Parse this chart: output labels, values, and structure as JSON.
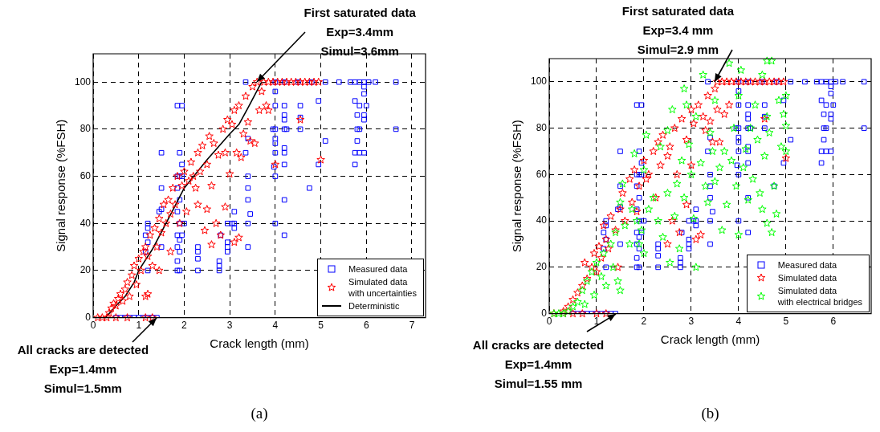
{
  "chart_data": [
    {
      "type": "scatter",
      "xlabel": "Crack length (mm)",
      "ylabel": "Signal response (%FSH)",
      "xlim": [
        0,
        7.3
      ],
      "ylim": [
        0,
        112
      ],
      "xticks": [
        0,
        1,
        2,
        3,
        4,
        5,
        6,
        7
      ],
      "yticks": [
        0,
        20,
        40,
        60,
        80,
        100
      ],
      "grid": true,
      "legend": "bottom right",
      "annotations": [
        {
          "text": "First saturated data\nExp=3.4mm\nSimul=3.6mm",
          "x": 3.6,
          "y": 100
        },
        {
          "text": "All cracks are detected\nExp=1.4mm\nSimul=1.5mm",
          "x": 1.4,
          "y": 0
        },
        "(a)"
      ],
      "series": [
        {
          "name": "Measured data",
          "color": "#0000ff",
          "marker": "square",
          "x": [
            0.5,
            0.6,
            0.7,
            0.8,
            0.9,
            1.0,
            1.1,
            1.2,
            1.3,
            1.4,
            1.5,
            1.85,
            1.95,
            1.9,
            1.95,
            1.5,
            1.45,
            1.5,
            1.2,
            1.2,
            1.15,
            1.2,
            1.15,
            1.5,
            1.2,
            1.85,
            1.9,
            1.95,
            1.85,
            1.9,
            1.85,
            1.9,
            1.85,
            1.9,
            1.85,
            1.9,
            1.85,
            1.9,
            1.85,
            2.0,
            1.95,
            2.3,
            2.3,
            2.3,
            2.3,
            2.77,
            2.77,
            2.77,
            2.8,
            2.95,
            2.95,
            2.95,
            2.95,
            3.1,
            3.1,
            3.1,
            3.05,
            3.35,
            3.4,
            3.4,
            3.4,
            3.4,
            3.45,
            3.4,
            3.4,
            4.0,
            4.0,
            3.95,
            4.0,
            4.0,
            4.0,
            4.0,
            3.97,
            4.0,
            4.0,
            4.2,
            4.2,
            4.2,
            4.2,
            4.25,
            4.2,
            4.2,
            4.2,
            4.2,
            4.2,
            4.55,
            4.55,
            4.55,
            4.75,
            4.95,
            4.95,
            5.1,
            5.75,
            5.8,
            5.85,
            6.0,
            5.95,
            5.95,
            5.95,
            5.95,
            5.8,
            5.85,
            5.8,
            5.75,
            5.85,
            5.95,
            5.75,
            6.65,
            3.35,
            4.0,
            4.2,
            4.5,
            4.8,
            5.1,
            5.4,
            5.65,
            5.75,
            5.85,
            5.95,
            6.05,
            6.2,
            6.65
          ],
          "values": [
            0,
            0,
            0,
            0,
            0,
            0,
            0,
            0,
            0,
            0,
            70,
            90,
            90,
            70,
            65,
            55,
            45,
            46,
            40,
            38,
            35,
            32,
            28,
            30,
            20,
            60,
            60,
            60,
            55,
            50,
            45,
            40,
            35,
            33,
            30,
            28,
            24,
            20,
            20,
            40,
            35,
            30,
            28,
            25,
            20,
            24,
            22,
            20,
            35,
            40,
            32,
            30,
            28,
            45,
            40,
            38,
            40,
            70,
            76,
            60,
            55,
            50,
            44,
            40,
            30,
            96,
            90,
            80,
            80,
            76,
            74,
            70,
            64,
            60,
            40,
            90,
            86,
            84,
            80,
            80,
            72,
            70,
            65,
            50,
            35,
            90,
            85,
            80,
            55,
            92,
            65,
            75,
            92,
            86,
            90,
            90,
            95,
            98,
            86,
            84,
            80,
            80,
            75,
            70,
            70,
            70,
            65,
            80,
            100,
            100,
            100,
            100,
            100,
            100,
            100,
            100,
            100,
            100,
            100,
            100,
            100,
            100
          ]
        },
        {
          "name": "Simulated data\nwith uncertainties",
          "color": "#ff0000",
          "marker": "star",
          "x": [
            0.1,
            0.2,
            0.3,
            0.5,
            0.75,
            1.15,
            1.3,
            0.35,
            0.4,
            0.45,
            0.5,
            0.55,
            0.6,
            0.65,
            0.7,
            0.75,
            0.8,
            0.85,
            0.9,
            0.95,
            1.0,
            1.05,
            1.1,
            1.15,
            1.15,
            1.2,
            1.2,
            1.25,
            1.3,
            1.35,
            1.4,
            1.45,
            1.45,
            1.5,
            1.55,
            1.6,
            1.65,
            1.7,
            1.7,
            1.75,
            1.8,
            1.85,
            1.9,
            1.95,
            2.0,
            2.05,
            2.1,
            2.15,
            2.2,
            2.25,
            2.3,
            2.3,
            2.35,
            2.4,
            2.45,
            2.5,
            2.5,
            2.55,
            2.6,
            2.6,
            2.65,
            2.7,
            2.75,
            2.8,
            2.85,
            2.9,
            2.9,
            2.95,
            3.0,
            3.05,
            3.1,
            3.1,
            3.15,
            3.2,
            3.2,
            3.25,
            3.3,
            3.35,
            3.4,
            3.45,
            3.5,
            3.55,
            3.6,
            3.65,
            3.7,
            3.8,
            3.85,
            4.0,
            4.55,
            5.0,
            3.75,
            3.85,
            3.95,
            4.05,
            4.15,
            4.25,
            4.35,
            4.45,
            4.55,
            4.65,
            4.75,
            4.85,
            4.95
          ],
          "values": [
            0,
            0,
            0,
            0,
            0,
            0,
            0,
            2,
            4,
            6,
            5,
            8,
            10,
            7,
            12,
            15,
            9,
            18,
            22,
            14,
            25,
            20,
            28,
            9,
            30,
            10,
            26,
            35,
            22,
            38,
            30,
            20,
            42,
            36,
            48,
            40,
            50,
            28,
            44,
            55,
            48,
            60,
            40,
            56,
            62,
            45,
            58,
            66,
            60,
            55,
            70,
            48,
            62,
            73,
            37,
            65,
            46,
            77,
            31,
            56,
            74,
            40,
            69,
            35,
            80,
            47,
            70,
            84,
            61,
            82,
            32,
            88,
            70,
            34,
            90,
            68,
            78,
            94,
            83,
            75,
            98,
            74,
            100,
            88,
            96,
            90,
            88,
            65,
            84,
            67,
            100,
            100,
            100,
            100,
            100,
            100,
            100,
            100,
            100,
            100,
            100,
            100,
            100
          ]
        },
        {
          "name": "Deterministic",
          "type": "line",
          "color": "#000000",
          "marker": "none",
          "line_style": "solid",
          "x": [
            0,
            0.27,
            0.5,
            0.7,
            0.9,
            1.0,
            1.3,
            1.6,
            2.0,
            2.5,
            3.0,
            3.2,
            3.4,
            3.7
          ],
          "values": [
            0,
            0,
            5,
            9,
            15,
            20,
            29,
            40,
            55,
            67,
            78,
            82,
            89,
            100
          ]
        }
      ]
    },
    {
      "type": "scatter",
      "xlabel": "Crack length (mm)",
      "ylabel": "Signal response (%FSH)",
      "xlim": [
        0,
        6.8
      ],
      "ylim": [
        0,
        110
      ],
      "xticks": [
        0,
        1,
        2,
        3,
        4,
        5,
        6
      ],
      "yticks": [
        0,
        20,
        40,
        60,
        80,
        100
      ],
      "grid": true,
      "legend": "bottom right",
      "annotations": [
        {
          "text": "First saturated data\nExp=3.4 mm\nSimul=2.9 mm",
          "x": 3.5,
          "y": 100
        },
        {
          "text": "All cracks are detected\nExp=1.4mm\nSimul=1.55 mm",
          "x": 1.4,
          "y": 0
        },
        "(b)"
      ],
      "series": [
        {
          "name": "Measured data",
          "color": "#0000ff",
          "marker": "square",
          "x": [
            0.5,
            0.6,
            0.7,
            0.8,
            0.9,
            1.0,
            1.1,
            1.2,
            1.3,
            1.4,
            1.5,
            1.85,
            1.95,
            1.9,
            1.95,
            1.5,
            1.45,
            1.5,
            1.2,
            1.2,
            1.15,
            1.2,
            1.15,
            1.5,
            1.2,
            1.85,
            1.9,
            1.95,
            1.85,
            1.9,
            1.85,
            1.9,
            1.85,
            1.9,
            1.85,
            1.9,
            1.85,
            1.9,
            1.85,
            2.0,
            1.95,
            2.3,
            2.3,
            2.3,
            2.3,
            2.77,
            2.77,
            2.77,
            2.8,
            2.95,
            2.95,
            2.95,
            2.95,
            3.1,
            3.1,
            3.1,
            3.05,
            3.35,
            3.4,
            3.4,
            3.4,
            3.4,
            3.45,
            3.4,
            3.4,
            4.0,
            4.0,
            3.95,
            4.0,
            4.0,
            4.0,
            4.0,
            3.97,
            4.0,
            4.0,
            4.2,
            4.2,
            4.2,
            4.2,
            4.25,
            4.2,
            4.2,
            4.2,
            4.2,
            4.2,
            4.55,
            4.55,
            4.55,
            4.75,
            4.95,
            4.95,
            5.1,
            5.75,
            5.8,
            5.85,
            6.0,
            5.95,
            5.95,
            5.95,
            5.95,
            5.8,
            5.85,
            5.8,
            5.75,
            5.85,
            5.95,
            5.75,
            6.65,
            3.35,
            4.0,
            4.2,
            4.5,
            4.8,
            5.1,
            5.4,
            5.65,
            5.75,
            5.85,
            5.95,
            6.05,
            6.2,
            6.65
          ],
          "values": [
            0,
            0,
            0,
            0,
            0,
            0,
            0,
            0,
            0,
            0,
            70,
            90,
            90,
            70,
            65,
            55,
            45,
            46,
            40,
            38,
            35,
            32,
            28,
            30,
            20,
            60,
            60,
            60,
            55,
            50,
            45,
            40,
            35,
            33,
            30,
            28,
            24,
            20,
            20,
            40,
            35,
            30,
            28,
            25,
            20,
            24,
            22,
            20,
            35,
            40,
            32,
            30,
            28,
            45,
            40,
            38,
            40,
            70,
            76,
            60,
            55,
            50,
            44,
            40,
            30,
            96,
            90,
            80,
            80,
            76,
            74,
            70,
            64,
            60,
            40,
            90,
            86,
            84,
            80,
            80,
            72,
            70,
            65,
            50,
            35,
            90,
            85,
            80,
            55,
            92,
            65,
            75,
            92,
            86,
            90,
            90,
            95,
            98,
            86,
            84,
            80,
            80,
            75,
            70,
            70,
            70,
            65,
            80,
            100,
            100,
            100,
            100,
            100,
            100,
            100,
            100,
            100,
            100,
            100,
            100,
            100,
            100
          ]
        },
        {
          "name": "Simulated data",
          "color": "#ff0000",
          "marker": "star",
          "x": [
            0.1,
            0.3,
            0.5,
            0.7,
            1.0,
            1.2,
            0.3,
            0.4,
            0.5,
            0.6,
            0.7,
            0.75,
            0.8,
            0.9,
            0.95,
            1.0,
            1.05,
            1.1,
            1.15,
            1.2,
            1.25,
            1.3,
            1.4,
            1.45,
            1.5,
            1.55,
            1.6,
            1.7,
            1.75,
            1.8,
            1.85,
            1.9,
            2.0,
            2.05,
            2.1,
            2.2,
            2.25,
            2.3,
            2.35,
            2.4,
            2.5,
            2.5,
            2.55,
            2.6,
            2.65,
            2.7,
            2.75,
            2.8,
            2.9,
            2.9,
            3.0,
            3.0,
            3.1,
            3.05,
            3.15,
            3.2,
            3.25,
            3.3,
            3.35,
            3.4,
            3.45,
            3.5,
            3.55,
            3.6,
            3.7,
            3.8,
            4.55,
            5.0,
            3.55,
            3.65,
            3.75,
            3.85,
            3.95,
            4.05,
            4.15,
            4.25,
            4.35,
            4.45,
            4.55,
            4.65,
            4.75,
            4.85,
            4.95
          ],
          "values": [
            0,
            0,
            0,
            0,
            0,
            0,
            1,
            3,
            6,
            9,
            12,
            22,
            15,
            20,
            26,
            18,
            29,
            24,
            38,
            32,
            28,
            42,
            36,
            20,
            45,
            52,
            40,
            58,
            48,
            62,
            44,
            55,
            66,
            58,
            60,
            70,
            50,
            74,
            64,
            77,
            30,
            68,
            72,
            40,
            80,
            60,
            35,
            84,
            47,
            75,
            88,
            64,
            32,
            82,
            90,
            34,
            85,
            79,
            94,
            83,
            74,
            97,
            88,
            74,
            86,
            90,
            84,
            67,
            100,
            100,
            100,
            100,
            100,
            100,
            100,
            100,
            100,
            100,
            100,
            100,
            100,
            100,
            100
          ]
        },
        {
          "name": "Simulated data\nwith electrical bridges",
          "color": "#00ff00",
          "marker": "star",
          "x": [
            0.1,
            0.2,
            0.3,
            0.4,
            0.5,
            0.6,
            0.7,
            0.75,
            0.8,
            0.9,
            0.95,
            1.0,
            1.1,
            1.15,
            1.2,
            1.3,
            1.35,
            1.4,
            1.45,
            1.5,
            1.5,
            1.55,
            1.6,
            1.7,
            1.75,
            1.8,
            1.85,
            1.9,
            1.95,
            2.0,
            2.0,
            2.05,
            2.1,
            2.2,
            2.3,
            2.35,
            2.4,
            2.5,
            2.5,
            2.55,
            2.6,
            2.65,
            2.7,
            2.75,
            2.8,
            2.85,
            2.85,
            2.9,
            2.95,
            3.0,
            3.05,
            3.1,
            3.1,
            3.2,
            3.25,
            3.3,
            3.35,
            3.4,
            3.45,
            3.5,
            3.5,
            3.6,
            3.65,
            3.7,
            3.75,
            3.8,
            3.85,
            3.9,
            3.95,
            4.0,
            4.0,
            4.05,
            4.1,
            4.15,
            4.2,
            4.25,
            4.3,
            4.35,
            4.4,
            4.45,
            4.5,
            4.5,
            4.55,
            4.6,
            4.6,
            4.65,
            4.7,
            4.75,
            4.8,
            4.85,
            4.9,
            4.95,
            5.0,
            5.0,
            5.0,
            4.7,
            4.6
          ],
          "values": [
            0,
            0,
            0,
            1,
            3,
            5,
            10,
            4,
            14,
            18,
            8,
            22,
            16,
            26,
            12,
            30,
            20,
            35,
            14,
            10,
            48,
            56,
            38,
            30,
            45,
            69,
            40,
            30,
            36,
            26,
            62,
            77,
            45,
            50,
            40,
            72,
            33,
            79,
            52,
            22,
            88,
            42,
            56,
            28,
            66,
            97,
            50,
            90,
            73,
            60,
            41,
            20,
            85,
            65,
            103,
            55,
            48,
            78,
            70,
            92,
            57,
            63,
            36,
            70,
            47,
            108,
            66,
            80,
            55,
            34,
            94,
            105,
            63,
            71,
            49,
            80,
            58,
            90,
            75,
            52,
            103,
            45,
            68,
            109,
            39,
            78,
            35,
            55,
            43,
            92,
            72,
            86,
            94,
            81,
            70,
            109,
            85
          ]
        }
      ]
    }
  ]
}
